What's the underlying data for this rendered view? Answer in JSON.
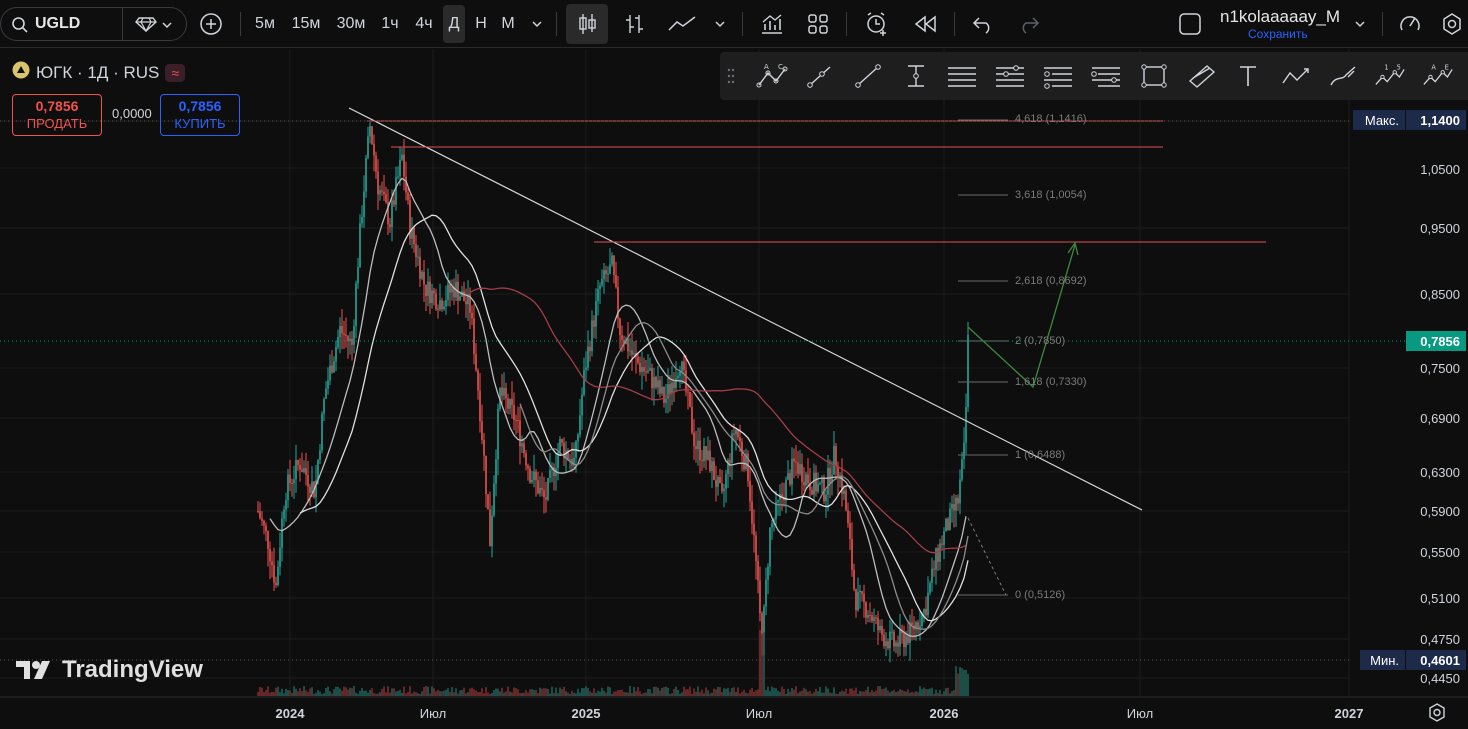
{
  "symbol": {
    "ticker": "UGLD"
  },
  "timeframes": [
    "5м",
    "15м",
    "30м",
    "1ч",
    "4ч",
    "Д",
    "Н",
    "М"
  ],
  "active_timeframe": "Д",
  "user": {
    "name": "n1kolaaaaay_M",
    "save_label": "Сохранить"
  },
  "legend": {
    "title": "ЮГК · 1Д · RUS",
    "sell_price": "0,7856",
    "sell_label": "ПРОДАТЬ",
    "spread": "0,0000",
    "buy_price": "0,7856",
    "buy_label": "КУПИТЬ"
  },
  "price_axis": {
    "labels": [
      "1,0500",
      "0,9500",
      "0,8500",
      "0,7500",
      "0,6900",
      "0,6300",
      "0,5900",
      "0,5500",
      "0,5100",
      "0,4750",
      "0,4450"
    ],
    "max_label": "Макс.",
    "max_value": "1,1400",
    "current_value": "0,7856",
    "min_label": "Мин.",
    "min_value": "0,4601"
  },
  "time_axis": [
    "2024",
    "Июл",
    "2025",
    "Июл",
    "2026",
    "Июл",
    "2027"
  ],
  "fib_levels": [
    {
      "label": "4,618 (1,1416)"
    },
    {
      "label": "3,618 (1,0054)"
    },
    {
      "label": "2,618 (0,8692)"
    },
    {
      "label": "2 (0,7850)"
    },
    {
      "label": "1,618 (0,7330)"
    },
    {
      "label": "1 (0,6488)"
    },
    {
      "label": "0 (0,5126)"
    }
  ],
  "branding": {
    "logo_text": "TradingView"
  },
  "colors": {
    "up": "#26a69a",
    "down": "#ef5350",
    "current": "#089981",
    "max_min_badge": "#1e2a4a"
  }
}
